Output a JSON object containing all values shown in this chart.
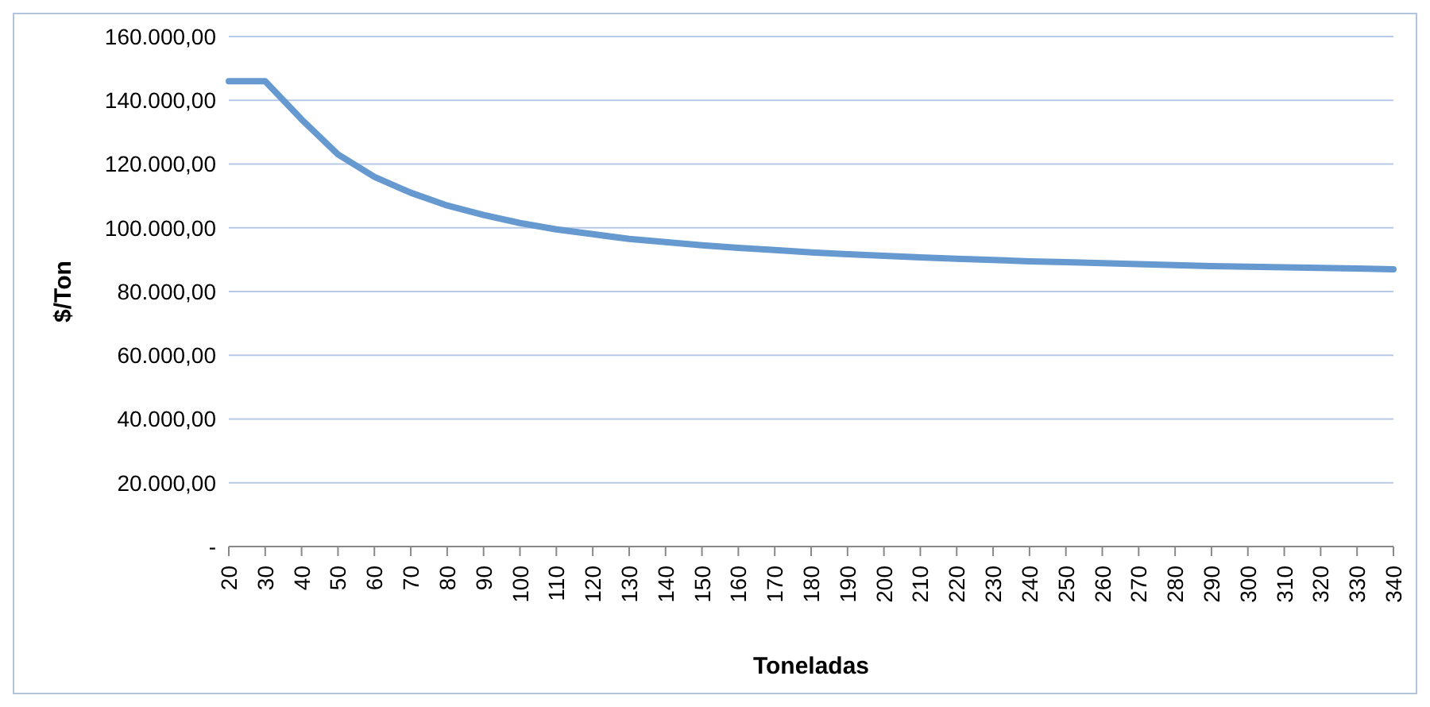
{
  "chart_data": {
    "type": "line",
    "xlabel": "Toneladas",
    "ylabel": "$/Ton",
    "categories": [
      "20",
      "30",
      "40",
      "50",
      "60",
      "70",
      "80",
      "90",
      "100",
      "110",
      "120",
      "130",
      "140",
      "150",
      "160",
      "170",
      "180",
      "190",
      "200",
      "210",
      "220",
      "230",
      "240",
      "250",
      "260",
      "270",
      "280",
      "290",
      "300",
      "310",
      "320",
      "330",
      "340"
    ],
    "series": [
      {
        "color": "#6699d0",
        "values": [
          146000,
          146000,
          134000,
          123000,
          116000,
          111000,
          107000,
          104000,
          101500,
          99500,
          98000,
          96500,
          95500,
          94500,
          93700,
          93000,
          92300,
          91700,
          91200,
          90700,
          90300,
          89900,
          89500,
          89200,
          88900,
          88600,
          88300,
          88000,
          87800,
          87600,
          87400,
          87200,
          87000
        ]
      }
    ],
    "ylim": [
      0,
      160000
    ],
    "yticks": [
      {
        "value": 0,
        "label": "-"
      },
      {
        "value": 20000,
        "label": "20.000,00"
      },
      {
        "value": 40000,
        "label": "40.000,00"
      },
      {
        "value": 60000,
        "label": "60.000,00"
      },
      {
        "value": 80000,
        "label": "80.000,00"
      },
      {
        "value": 100000,
        "label": "100.000,00"
      },
      {
        "value": 120000,
        "label": "120.000,00"
      },
      {
        "value": 140000,
        "label": "140.000,00"
      },
      {
        "value": 160000,
        "label": "160.000,00"
      }
    ],
    "grid": "y",
    "legend": false,
    "marker": "none",
    "line_style": "solid"
  }
}
